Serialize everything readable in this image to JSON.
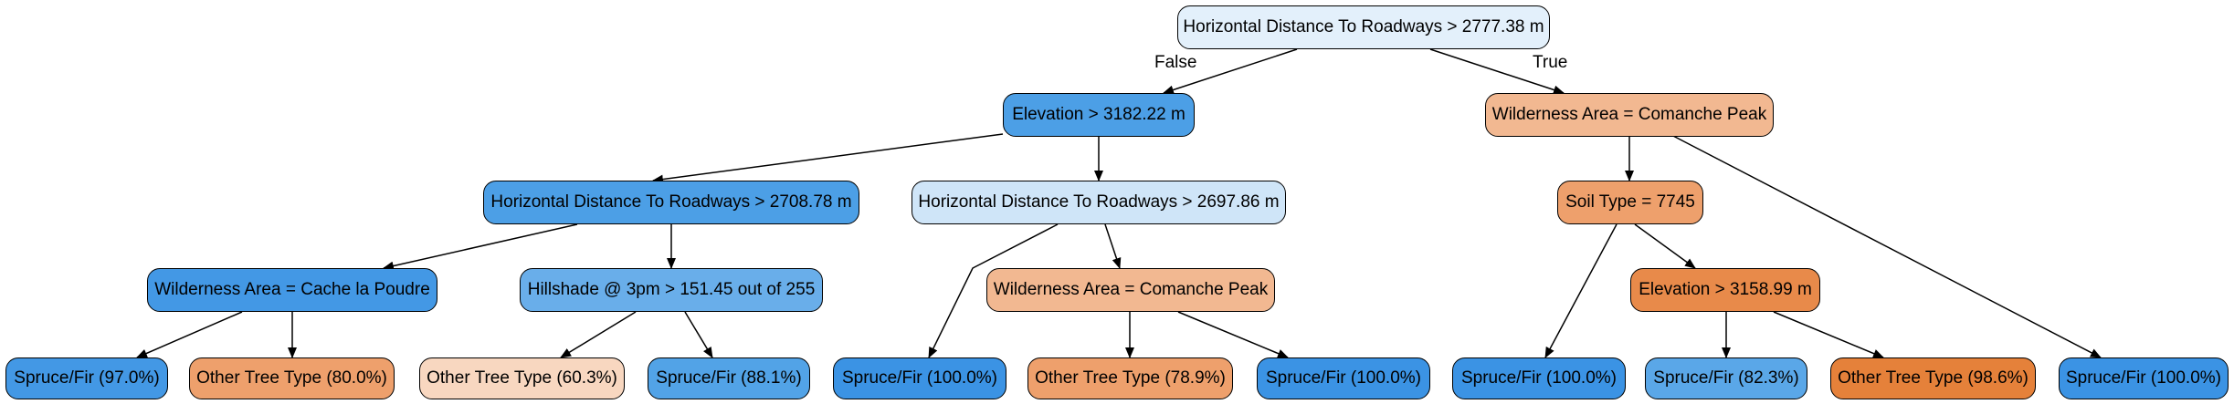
{
  "edge_labels": {
    "false": "False",
    "true": "True"
  },
  "nodes": {
    "n0": {
      "label": "Horizontal Distance To Roadways > 2777.38 m",
      "fill": "#e3f0fb"
    },
    "n1": {
      "label": "Elevation > 3182.22 m",
      "fill": "#4c9fe6"
    },
    "n2": {
      "label": "Wilderness Area = Comanche Peak",
      "fill": "#f2b891"
    },
    "n3": {
      "label": "Horizontal Distance To Roadways > 2708.78 m",
      "fill": "#4c9fe6"
    },
    "n4": {
      "label": "Horizontal Distance To Roadways > 2697.86 m",
      "fill": "#cfe5f8"
    },
    "n5": {
      "label": "Soil Type = 7745",
      "fill": "#eea06c"
    },
    "n6": {
      "label": "Wilderness Area = Cache la Poudre",
      "fill": "#4398e5"
    },
    "n7": {
      "label": "Hillshade @ 3pm > 151.45 out of 255",
      "fill": "#69aeea"
    },
    "n8": {
      "label": "Wilderness Area = Comanche Peak",
      "fill": "#f2b891"
    },
    "n9": {
      "label": "Elevation > 3158.99 m",
      "fill": "#e88a4a"
    },
    "l1": {
      "label": "Spruce/Fir (97.0%)",
      "fill": "#4398e5"
    },
    "l2": {
      "label": "Other Tree Type (80.0%)",
      "fill": "#eea06c"
    },
    "l3": {
      "label": "Other Tree Type (60.3%)",
      "fill": "#f8d7c0"
    },
    "l4": {
      "label": "Spruce/Fir (88.1%)",
      "fill": "#52a3e7"
    },
    "l5": {
      "label": "Spruce/Fir (100.0%)",
      "fill": "#3b93e4"
    },
    "l6": {
      "label": "Other Tree Type (78.9%)",
      "fill": "#eea06c"
    },
    "l7": {
      "label": "Spruce/Fir (100.0%)",
      "fill": "#3b93e4"
    },
    "l8": {
      "label": "Spruce/Fir (100.0%)",
      "fill": "#3b93e4"
    },
    "l9": {
      "label": "Spruce/Fir (82.3%)",
      "fill": "#5aa7e8"
    },
    "l10": {
      "label": "Other Tree Type (98.6%)",
      "fill": "#e5813a"
    },
    "l11": {
      "label": "Spruce/Fir (100.0%)",
      "fill": "#3b93e4"
    }
  }
}
